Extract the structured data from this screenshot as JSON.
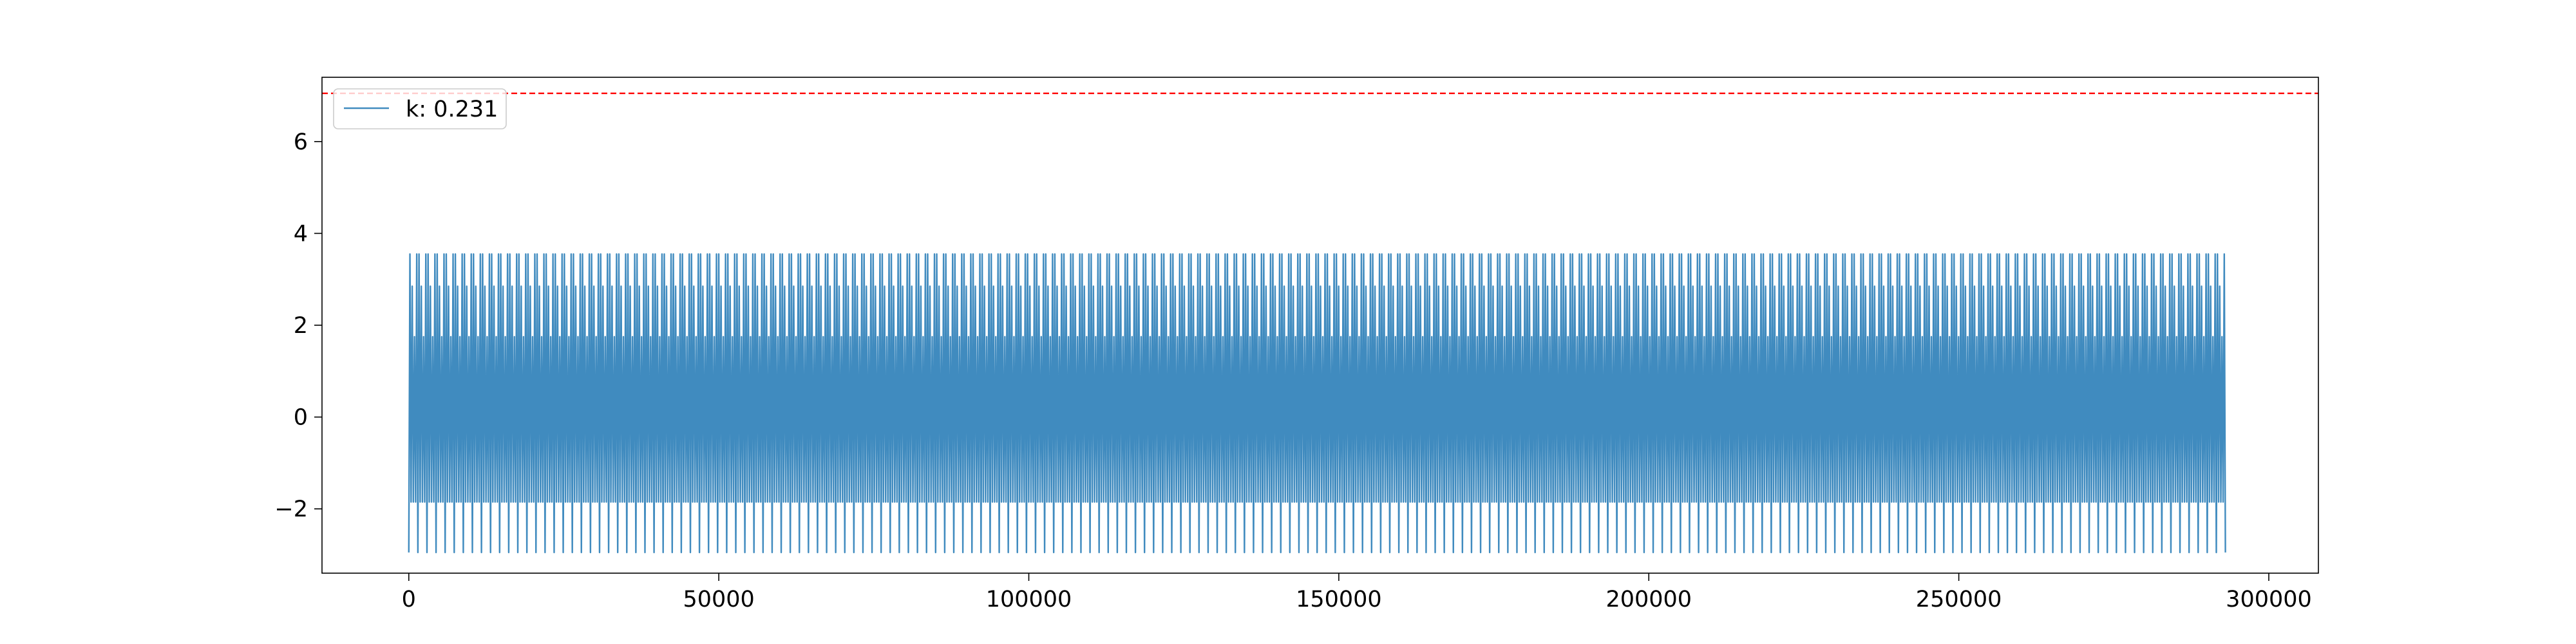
{
  "chart_data": {
    "type": "line",
    "title": "",
    "xlabel": "",
    "ylabel": "",
    "xlim": [
      -14000,
      308000
    ],
    "ylim": [
      -3.4,
      7.4
    ],
    "x_ticks": [
      0,
      50000,
      100000,
      150000,
      200000,
      250000,
      300000
    ],
    "x_tick_labels": [
      "0",
      "50000",
      "100000",
      "150000",
      "200000",
      "250000",
      "300000"
    ],
    "y_ticks": [
      -2,
      0,
      2,
      4,
      6
    ],
    "y_tick_labels": [
      "−2",
      "0",
      "2",
      "4",
      "6"
    ],
    "grid": false,
    "legend_position": "top-left",
    "series": [
      {
        "name": "k: 0.231",
        "color": "#1f77b4",
        "x_start": 0,
        "x_end": 293000,
        "cycles": 200,
        "cycle_levels": [
          -2.95,
          3.55,
          -1.85,
          2.85,
          -1.85,
          1.75,
          -1.85,
          3.55,
          -2.95
        ]
      }
    ],
    "reference_line": {
      "y": 7.05,
      "color": "#ff0000",
      "style": "dashed"
    }
  }
}
